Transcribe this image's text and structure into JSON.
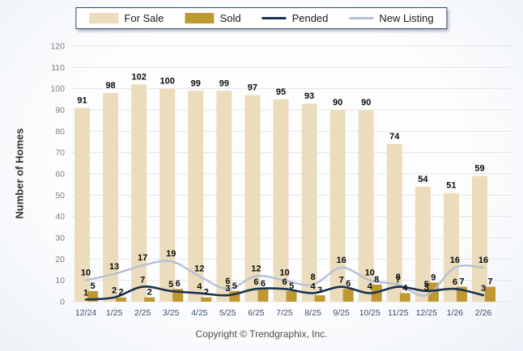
{
  "legend": {
    "items": [
      {
        "label": "For Sale"
      },
      {
        "label": "Sold"
      },
      {
        "label": "Pended"
      },
      {
        "label": "New Listing"
      }
    ]
  },
  "footer": {
    "copyright": "Copyright © Trendgraphix, Inc."
  },
  "chart_data": {
    "type": "combo",
    "title": "",
    "xlabel": "",
    "ylabel": "Number of Homes",
    "ylim": [
      0,
      120
    ],
    "ytick_step": 10,
    "grid": true,
    "legend_position": "top",
    "categories": [
      "12/24",
      "1/25",
      "2/25",
      "3/25",
      "4/25",
      "5/25",
      "6/25",
      "7/25",
      "8/25",
      "9/25",
      "10/25",
      "11/25",
      "12/25",
      "1/26",
      "2/26"
    ],
    "series": [
      {
        "name": "For Sale",
        "type": "bar",
        "color": "#EBDDBB",
        "values": [
          91,
          98,
          102,
          100,
          99,
          99,
          97,
          95,
          93,
          90,
          90,
          74,
          54,
          51,
          59
        ]
      },
      {
        "name": "Sold",
        "type": "bar",
        "color": "#BF9832",
        "values": [
          5,
          2,
          2,
          6,
          2,
          5,
          6,
          5,
          3,
          6,
          8,
          4,
          9,
          7,
          7
        ]
      },
      {
        "name": "Pended",
        "type": "line",
        "color": "#1B3250",
        "values": [
          1,
          2,
          7,
          5,
          4,
          3,
          6,
          6,
          4,
          7,
          4,
          7,
          5,
          6,
          3
        ]
      },
      {
        "name": "New Listing",
        "type": "line",
        "color": "#B5BFD3",
        "values": [
          10,
          13,
          17,
          19,
          12,
          6,
          12,
          10,
          8,
          16,
          10,
          8,
          3,
          16,
          16
        ]
      }
    ],
    "value_label_color": "#0a0a0a",
    "x_label_color": "#3d4e6e",
    "y_tick_color": "#7f7f7f",
    "grid_color": "#e4e6e9"
  }
}
